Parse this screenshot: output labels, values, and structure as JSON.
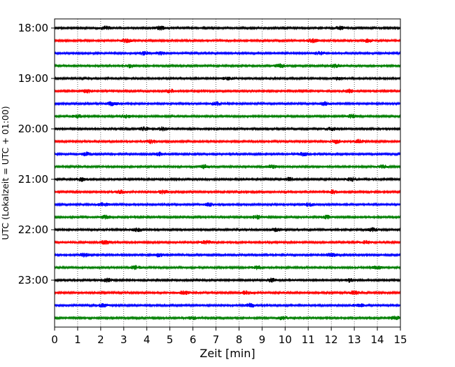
{
  "chart_data": {
    "type": "line",
    "title": "",
    "xlabel": "Zeit  [min]",
    "ylabel": "UTC (Lokalzeit = UTC + 01:00)",
    "xlim": [
      0,
      15
    ],
    "x_ticks": [
      "0",
      "1",
      "2",
      "3",
      "4",
      "5",
      "6",
      "7",
      "8",
      "9",
      "10",
      "11",
      "12",
      "13",
      "14",
      "15"
    ],
    "y_tick_labels": [
      "18:00",
      "19:00",
      "20:00",
      "21:00",
      "22:00",
      "23:00"
    ],
    "grid": "vertical dotted at each minute",
    "traces_per_hour": 4,
    "trace_interval_minutes": 15,
    "trace_count": 24,
    "trace_colors": [
      "#000000",
      "#ff0000",
      "#0000ff",
      "#007f00"
    ],
    "traces": [
      {
        "start": "18:00",
        "color": "#000000",
        "bursts": [
          2.2,
          4.6,
          12.4
        ]
      },
      {
        "start": "18:15",
        "color": "#ff0000",
        "bursts": [
          3.1,
          11.2,
          13.6
        ]
      },
      {
        "start": "18:30",
        "color": "#0000ff",
        "bursts": [
          3.9,
          4.6,
          11.5
        ]
      },
      {
        "start": "18:45",
        "color": "#007f00",
        "bursts": [
          3.3,
          9.8,
          12.2
        ]
      },
      {
        "start": "19:00",
        "color": "#000000",
        "bursts": [
          7.5,
          12.3
        ]
      },
      {
        "start": "19:15",
        "color": "#ff0000",
        "bursts": [
          1.4,
          5.0,
          12.8
        ]
      },
      {
        "start": "19:30",
        "color": "#0000ff",
        "bursts": [
          2.5,
          7.0,
          11.7
        ]
      },
      {
        "start": "19:45",
        "color": "#007f00",
        "bursts": [
          1.0,
          3.1,
          12.9
        ]
      },
      {
        "start": "20:00",
        "color": "#000000",
        "bursts": [
          3.9,
          4.7,
          12.0
        ]
      },
      {
        "start": "20:15",
        "color": "#ff0000",
        "bursts": [
          4.2,
          12.2,
          13.2
        ]
      },
      {
        "start": "20:30",
        "color": "#0000ff",
        "bursts": [
          1.4,
          4.6,
          10.8
        ]
      },
      {
        "start": "20:45",
        "color": "#007f00",
        "bursts": [
          6.5,
          9.4,
          14.2
        ]
      },
      {
        "start": "21:00",
        "color": "#000000",
        "bursts": [
          1.2,
          10.2,
          12.9
        ]
      },
      {
        "start": "21:15",
        "color": "#ff0000",
        "bursts": [
          2.9,
          4.7,
          12.1
        ]
      },
      {
        "start": "21:30",
        "color": "#0000ff",
        "bursts": [
          2.1,
          6.7,
          11.0
        ]
      },
      {
        "start": "21:45",
        "color": "#007f00",
        "bursts": [
          2.2,
          8.8,
          11.8
        ]
      },
      {
        "start": "22:00",
        "color": "#000000",
        "bursts": [
          3.6,
          9.6,
          13.8
        ]
      },
      {
        "start": "22:15",
        "color": "#ff0000",
        "bursts": [
          2.2,
          6.6,
          13.5
        ]
      },
      {
        "start": "22:30",
        "color": "#0000ff",
        "bursts": [
          1.3,
          4.5,
          12.0
        ]
      },
      {
        "start": "22:45",
        "color": "#007f00",
        "bursts": [
          3.5,
          8.8,
          14.0
        ]
      },
      {
        "start": "23:00",
        "color": "#000000",
        "bursts": [
          2.3,
          9.4,
          12.8
        ]
      },
      {
        "start": "23:15",
        "color": "#ff0000",
        "bursts": [
          5.6,
          8.3,
          13.0
        ]
      },
      {
        "start": "23:30",
        "color": "#0000ff",
        "bursts": [
          2.1,
          8.5,
          13.2
        ]
      },
      {
        "start": "23:45",
        "color": "#007f00",
        "bursts": [
          6.0,
          9.9,
          14.8
        ]
      }
    ]
  }
}
